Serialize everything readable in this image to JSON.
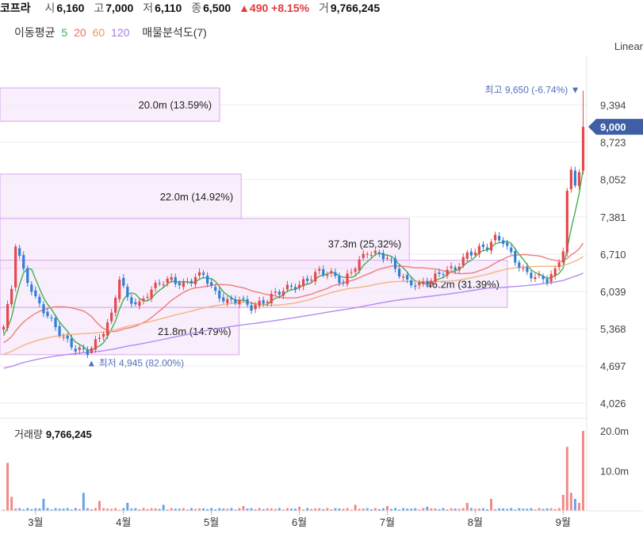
{
  "header": {
    "name": "코프라",
    "open_label": "시",
    "open": "6,160",
    "high_label": "고",
    "high": "7,000",
    "low_label": "저",
    "low": "6,110",
    "close_label": "종",
    "close": "6,500",
    "change_text": "▲490 +8.15%",
    "volume_label": "거",
    "volume": "9,766,245"
  },
  "indicators": {
    "ma_label": "이동평균",
    "ma5": "5",
    "ma20": "20",
    "ma60": "60",
    "ma120": "120",
    "profile_label": "매물분석도(7)"
  },
  "scale_label": "Linear",
  "colors": {
    "up": "#e5484d",
    "down": "#2f7fd6",
    "ma5": "#3fb24f",
    "ma20": "#f07c7c",
    "ma60": "#f5b37e",
    "ma120": "#b58af0",
    "profile_fill": "#f5e8fb",
    "profile_border": "#d9a7ec",
    "current_tag": "#3f5fa5"
  },
  "volume_panel": {
    "label": "거래량",
    "value": "9,766,245",
    "ticks": [
      "20.0m",
      "10.0m"
    ]
  },
  "chart_data": {
    "type": "candlestick",
    "ylim": [
      3800,
      10000
    ],
    "y_ticks": [
      "9,394",
      "8,723",
      "8,052",
      "7,381",
      "6,710",
      "6,039",
      "5,368",
      "4,697",
      "4,026"
    ],
    "y_tick_values": [
      9394,
      8723,
      8052,
      7381,
      6710,
      6039,
      5368,
      4697,
      4026
    ],
    "x_ticks": [
      "3월",
      "4월",
      "5월",
      "6월",
      "7월",
      "8월",
      "9월"
    ],
    "x_tick_index": [
      8,
      30,
      52,
      74,
      96,
      118,
      140
    ],
    "n_days": 146,
    "current_price": {
      "label": "9,000",
      "value": 9000
    },
    "max_marker": {
      "label": "최고",
      "value": "9,650 (-6.74%)",
      "price": 9650,
      "index": 145
    },
    "min_marker": {
      "label": "최저",
      "value": "4,945 (82.00%)",
      "price": 4945,
      "index": 22
    },
    "volume_profile": [
      {
        "low": 9100,
        "high": 9700,
        "label": "20.0m (13.59%)",
        "pct": 13.59
      },
      {
        "low": 7350,
        "high": 8150,
        "label": "22.0m (14.92%)",
        "pct": 14.92
      },
      {
        "low": 6450,
        "high": 7350,
        "label": "37.3m (25.32%)",
        "pct": 25.32
      },
      {
        "low": 5750,
        "high": 6600,
        "label": "46.2m (31.39%)",
        "pct": 31.39
      },
      {
        "low": 4900,
        "high": 5750,
        "label": "21.8m (14.79%)",
        "pct": 14.79
      }
    ],
    "keypoints": [
      [
        0,
        5400
      ],
      [
        2,
        6100
      ],
      [
        3,
        6900
      ],
      [
        5,
        6400
      ],
      [
        8,
        5900
      ],
      [
        12,
        5500
      ],
      [
        15,
        5200
      ],
      [
        18,
        5000
      ],
      [
        21,
        4950
      ],
      [
        24,
        5200
      ],
      [
        27,
        5600
      ],
      [
        29,
        6300
      ],
      [
        31,
        5900
      ],
      [
        34,
        5800
      ],
      [
        36,
        6000
      ],
      [
        39,
        6200
      ],
      [
        42,
        6250
      ],
      [
        45,
        6150
      ],
      [
        48,
        6300
      ],
      [
        50,
        6350
      ],
      [
        53,
        6000
      ],
      [
        56,
        5850
      ],
      [
        59,
        5900
      ],
      [
        62,
        5750
      ],
      [
        65,
        5850
      ],
      [
        68,
        6000
      ],
      [
        71,
        6100
      ],
      [
        74,
        6150
      ],
      [
        76,
        6250
      ],
      [
        79,
        6400
      ],
      [
        82,
        6350
      ],
      [
        85,
        6200
      ],
      [
        88,
        6500
      ],
      [
        91,
        6750
      ],
      [
        94,
        6700
      ],
      [
        96,
        6650
      ],
      [
        98,
        6450
      ],
      [
        101,
        6200
      ],
      [
        104,
        6150
      ],
      [
        107,
        6250
      ],
      [
        110,
        6400
      ],
      [
        113,
        6450
      ],
      [
        116,
        6700
      ],
      [
        119,
        6800
      ],
      [
        121,
        6850
      ],
      [
        123,
        7000
      ],
      [
        125,
        6950
      ],
      [
        127,
        6700
      ],
      [
        130,
        6400
      ],
      [
        133,
        6300
      ],
      [
        136,
        6250
      ],
      [
        138,
        6400
      ],
      [
        140,
        6800
      ],
      [
        141,
        7800
      ],
      [
        142,
        8200
      ],
      [
        143,
        8000
      ],
      [
        144,
        8200
      ],
      [
        145,
        9000
      ]
    ],
    "volume_spikes": [
      [
        1,
        12
      ],
      [
        2,
        3.5
      ],
      [
        10,
        3
      ],
      [
        20,
        4.5
      ],
      [
        24,
        2.5
      ],
      [
        31,
        2
      ],
      [
        40,
        1.5
      ],
      [
        60,
        1.2
      ],
      [
        74,
        1
      ],
      [
        88,
        1.5
      ],
      [
        96,
        1.2
      ],
      [
        106,
        1
      ],
      [
        116,
        2
      ],
      [
        122,
        3
      ],
      [
        140,
        4
      ],
      [
        141,
        16
      ],
      [
        142,
        4.5
      ],
      [
        143,
        3
      ],
      [
        144,
        2
      ],
      [
        145,
        20
      ]
    ]
  }
}
